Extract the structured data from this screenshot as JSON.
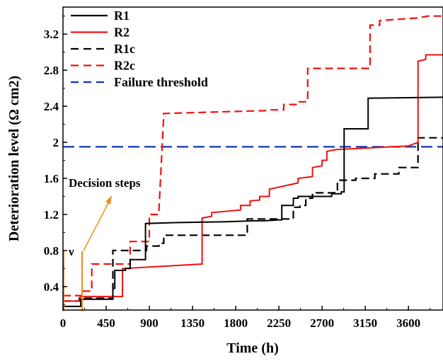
{
  "chart_data": {
    "type": "line",
    "title": "",
    "xlabel": "Time (h)",
    "ylabel": "Deterioration level (Ω cm2)",
    "xlim": [
      0,
      3960
    ],
    "ylim": [
      0.14,
      3.5
    ],
    "x_ticks": [
      0,
      450,
      900,
      1350,
      1800,
      2250,
      2700,
      3150,
      3600
    ],
    "x_tick_labels": [
      "0",
      "450",
      "900",
      "1350",
      "1800",
      "2250",
      "2700",
      "3150",
      "3600"
    ],
    "y_ticks": [
      0.4,
      0.8,
      1.2,
      1.6,
      2.0,
      2.4,
      2.8,
      3.2
    ],
    "y_tick_labels": [
      "0.4",
      "0.8",
      "1.2",
      "1.6",
      "2",
      "2.4",
      "2.8",
      "3.2"
    ],
    "grid": false,
    "legend_position": "top-left",
    "series": [
      {
        "name": "R1",
        "color": "#000000",
        "dash": "solid",
        "x": [
          0,
          185,
          185,
          520,
          520,
          540,
          540,
          650,
          650,
          700,
          700,
          860,
          860,
          1200,
          1700,
          2000,
          2100,
          2250,
          2280,
          2280,
          2400,
          2400,
          2450,
          2450,
          2800,
          2800,
          2900,
          2900,
          2930,
          2930,
          3180,
          3180,
          3960
        ],
        "y": [
          0.18,
          0.18,
          0.26,
          0.26,
          0.38,
          0.38,
          0.58,
          0.58,
          0.6,
          0.6,
          0.7,
          0.7,
          1.1,
          1.11,
          1.12,
          1.13,
          1.13,
          1.14,
          1.14,
          1.3,
          1.3,
          1.38,
          1.38,
          1.4,
          1.4,
          1.43,
          1.43,
          1.45,
          1.45,
          2.15,
          2.15,
          2.49,
          2.5
        ]
      },
      {
        "name": "R2",
        "color": "#ee1111",
        "dash": "solid",
        "x": [
          0,
          180,
          180,
          620,
          620,
          1450,
          1450,
          1550,
          1550,
          1850,
          1850,
          1950,
          1950,
          2050,
          2050,
          2150,
          2150,
          2450,
          2450,
          2600,
          2600,
          2700,
          2700,
          2750,
          2750,
          2850,
          2850,
          3600,
          3600,
          3700,
          3700,
          3780,
          3780,
          3960
        ],
        "y": [
          0.24,
          0.24,
          0.29,
          0.29,
          0.6,
          0.65,
          1.16,
          1.18,
          1.22,
          1.25,
          1.3,
          1.3,
          1.35,
          1.36,
          1.4,
          1.4,
          1.48,
          1.55,
          1.6,
          1.62,
          1.72,
          1.74,
          1.8,
          1.8,
          1.9,
          1.92,
          1.92,
          1.96,
          1.96,
          2.0,
          2.9,
          2.92,
          2.97,
          2.97
        ]
      },
      {
        "name": "R1c",
        "color": "#000000",
        "dash": "dashed",
        "x": [
          0,
          170,
          170,
          520,
          520,
          870,
          870,
          1000,
          1000,
          1050,
          1050,
          1920,
          1920,
          2400,
          2400,
          2470,
          2470,
          2530,
          2530,
          2600,
          2600,
          2620,
          2620,
          2860,
          2860,
          3050,
          3050,
          3250,
          3250,
          3500,
          3500,
          3700,
          3700,
          3960
        ],
        "y": [
          0.24,
          0.24,
          0.27,
          0.27,
          0.8,
          0.8,
          0.85,
          0.85,
          0.88,
          0.88,
          0.97,
          0.97,
          1.15,
          1.15,
          1.28,
          1.28,
          1.3,
          1.3,
          1.38,
          1.38,
          1.42,
          1.42,
          1.44,
          1.44,
          1.58,
          1.58,
          1.6,
          1.6,
          1.65,
          1.65,
          1.72,
          1.72,
          2.05,
          2.05
        ]
      },
      {
        "name": "R2c",
        "color": "#ee1111",
        "dash": "dashed",
        "x": [
          0,
          200,
          200,
          300,
          300,
          700,
          700,
          900,
          900,
          1000,
          1000,
          1050,
          1050,
          1400,
          1700,
          2050,
          2100,
          2150,
          2300,
          2300,
          2450,
          2450,
          2550,
          2550,
          3200,
          3200,
          3300,
          3300,
          3700,
          3800,
          3960
        ],
        "y": [
          0.3,
          0.3,
          0.35,
          0.35,
          0.65,
          0.65,
          0.9,
          0.9,
          1.2,
          1.2,
          1.25,
          2.3,
          2.32,
          2.33,
          2.34,
          2.35,
          2.35,
          2.36,
          2.36,
          2.42,
          2.42,
          2.45,
          2.45,
          2.82,
          2.82,
          3.3,
          3.3,
          3.35,
          3.38,
          3.4,
          3.4
        ]
      },
      {
        "name": "Failure threshold",
        "color": "#1133bb",
        "dash": "dashed",
        "x": [
          0,
          3960
        ],
        "y": [
          1.95,
          1.95
        ]
      }
    ],
    "annotations": [
      {
        "text": "Decision steps",
        "arrow_color": "#f28c1e"
      },
      {
        "text": "ν",
        "marker_color": "#f28c1e"
      }
    ]
  }
}
